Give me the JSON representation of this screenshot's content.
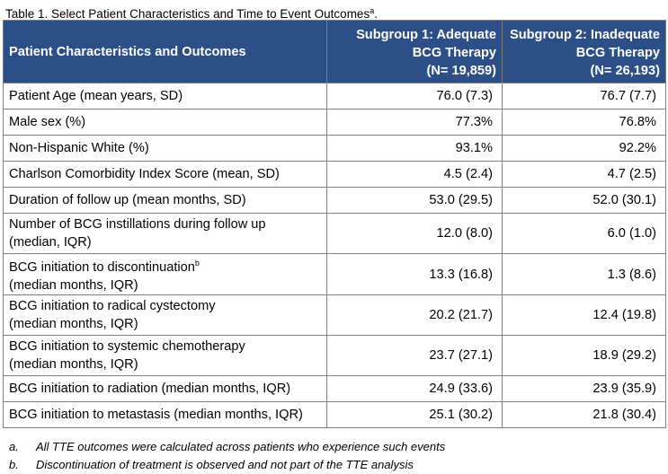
{
  "caption": {
    "text": "Table 1. Select Patient Characteristics and Time to Event Outcomes",
    "sup": "a",
    "end": "."
  },
  "table": {
    "headers": {
      "col1": "Patient Characteristics and Outcomes",
      "col2": [
        "Subgroup 1: Adequate",
        "BCG Therapy",
        "(N= 19,859)"
      ],
      "col3": [
        "Subgroup 2: Inadequate",
        "BCG Therapy",
        "(N= 26,193)"
      ]
    },
    "rows": [
      {
        "label": [
          "Patient Age (mean years, SD)"
        ],
        "sup": "",
        "g1": "76.0 (7.3)",
        "g2": "76.7 (7.7)"
      },
      {
        "label": [
          "Male sex (%)"
        ],
        "sup": "",
        "g1": "77.3%",
        "g2": "76.8%"
      },
      {
        "label": [
          "Non-Hispanic White (%)"
        ],
        "sup": "",
        "g1": "93.1%",
        "g2": "92.2%"
      },
      {
        "label": [
          "Charlson Comorbidity Index Score (mean, SD)"
        ],
        "sup": "",
        "g1": "4.5 (2.4)",
        "g2": "4.7 (2.5)"
      },
      {
        "label": [
          "Duration of follow up (mean months, SD)"
        ],
        "sup": "",
        "g1": "53.0 (29.5)",
        "g2": "52.0 (30.1)"
      },
      {
        "label": [
          "Number of BCG instillations during follow up",
          "(median, IQR)"
        ],
        "sup": "",
        "g1": "12.0 (8.0)",
        "g2": "6.0 (1.0)"
      },
      {
        "label": [
          "BCG initiation to discontinuation",
          "(median months, IQR)"
        ],
        "sup": "b",
        "g1": "13.3 (16.8)",
        "g2": "1.3 (8.6)"
      },
      {
        "label": [
          "BCG initiation to radical cystectomy",
          "(median months, IQR)"
        ],
        "sup": "",
        "g1": "20.2 (21.7)",
        "g2": "12.4 (19.8)"
      },
      {
        "label": [
          "BCG initiation to systemic chemotherapy",
          "(median months, IQR)"
        ],
        "sup": "",
        "g1": "23.7 (27.1)",
        "g2": "18.9 (29.2)"
      },
      {
        "label": [
          "BCG initiation to radiation (median months, IQR)"
        ],
        "sup": "",
        "g1": "24.9 (33.6)",
        "g2": "23.9 (35.9)"
      },
      {
        "label": [
          "BCG initiation to metastasis (median months, IQR)"
        ],
        "sup": "",
        "g1": "25.1 (30.2)",
        "g2": "21.8 (30.4)"
      }
    ]
  },
  "footnotes": [
    {
      "marker": "a.",
      "text": "All TTE outcomes were calculated across patients who experience such events"
    },
    {
      "marker": "b.",
      "text": "Discontinuation of treatment is observed and not part of the TTE analysis"
    }
  ],
  "colors": {
    "header_bg": "#2d4f87",
    "header_text": "#ffffff",
    "border": "#7f7f7f"
  }
}
